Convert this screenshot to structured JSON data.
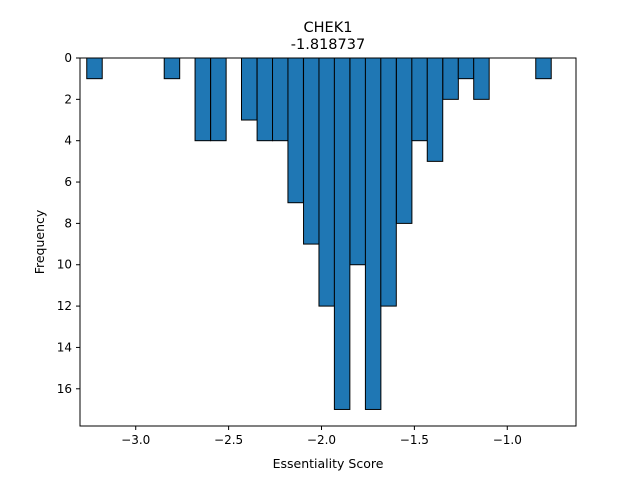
{
  "chart_data": {
    "type": "bar",
    "title": "CHEK1",
    "subtitle": "-1.818737",
    "xlabel": "Essentiality Score",
    "ylabel": "Frequency",
    "xlim": [
      -3.3,
      -0.63
    ],
    "ylim": [
      17.8,
      0
    ],
    "y_inverted": true,
    "bin_width": 0.0833,
    "xticks": [
      {
        "value": -3.0,
        "label": "−3.0"
      },
      {
        "value": -2.5,
        "label": "−2.5"
      },
      {
        "value": -2.0,
        "label": "−2.0"
      },
      {
        "value": -1.5,
        "label": "−1.5"
      },
      {
        "value": -1.0,
        "label": "−1.0"
      }
    ],
    "yticks": [
      {
        "value": 0,
        "label": "0"
      },
      {
        "value": 2,
        "label": "2"
      },
      {
        "value": 4,
        "label": "4"
      },
      {
        "value": 6,
        "label": "6"
      },
      {
        "value": 8,
        "label": "8"
      },
      {
        "value": 10,
        "label": "10"
      },
      {
        "value": 12,
        "label": "12"
      },
      {
        "value": 14,
        "label": "14"
      },
      {
        "value": 16,
        "label": "16"
      }
    ],
    "bins": [
      {
        "x": -3.222,
        "count": 1
      },
      {
        "x": -2.972,
        "count": 0
      },
      {
        "x": -2.889,
        "count": 0
      },
      {
        "x": -2.805,
        "count": 1
      },
      {
        "x": -2.639,
        "count": 4
      },
      {
        "x": -2.555,
        "count": 4
      },
      {
        "x": -2.389,
        "count": 3
      },
      {
        "x": -2.305,
        "count": 4
      },
      {
        "x": -2.222,
        "count": 4
      },
      {
        "x": -2.139,
        "count": 7
      },
      {
        "x": -2.055,
        "count": 9
      },
      {
        "x": -1.972,
        "count": 12
      },
      {
        "x": -1.889,
        "count": 17
      },
      {
        "x": -1.805,
        "count": 10
      },
      {
        "x": -1.722,
        "count": 17
      },
      {
        "x": -1.639,
        "count": 12
      },
      {
        "x": -1.555,
        "count": 8
      },
      {
        "x": -1.472,
        "count": 4
      },
      {
        "x": -1.389,
        "count": 5
      },
      {
        "x": -1.305,
        "count": 2
      },
      {
        "x": -1.222,
        "count": 1
      },
      {
        "x": -1.139,
        "count": 2
      },
      {
        "x": -0.805,
        "count": 1
      }
    ],
    "bar_color": "#1f77b4",
    "edge_color": "#000000",
    "grid": false
  }
}
